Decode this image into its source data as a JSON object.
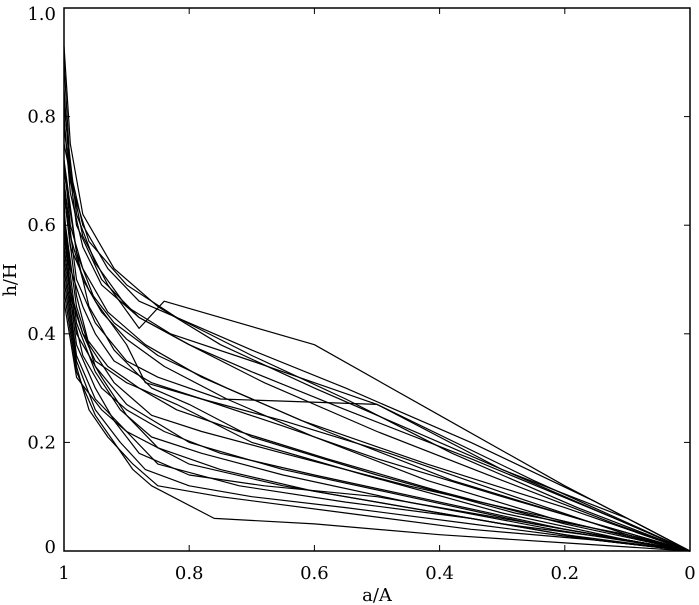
{
  "chart_data": {
    "type": "line",
    "title": "",
    "xlabel": "a/A",
    "ylabel": "h/H",
    "xlim": [
      1.0,
      0.0
    ],
    "ylim": [
      0.0,
      1.0
    ],
    "x_inverted": true,
    "grid": false,
    "legend": "none",
    "line_color": "#000000",
    "x_ticks": [
      {
        "value": 1.0,
        "label": "1"
      },
      {
        "value": 0.8,
        "label": "0.8"
      },
      {
        "value": 0.6,
        "label": "0.6"
      },
      {
        "value": 0.4,
        "label": "0.4"
      },
      {
        "value": 0.2,
        "label": "0.2"
      },
      {
        "value": 0.0,
        "label": "0"
      }
    ],
    "y_ticks": [
      {
        "value": 0.0,
        "label": "0"
      },
      {
        "value": 0.2,
        "label": "0.2"
      },
      {
        "value": 0.4,
        "label": "0.4"
      },
      {
        "value": 0.6,
        "label": "0.6"
      },
      {
        "value": 0.8,
        "label": "0.8"
      },
      {
        "value": 1.0,
        "label": "1.0"
      }
    ],
    "series": [
      {
        "x": [
          1.0,
          0.99,
          0.97,
          0.92,
          0.85,
          0.75,
          0.6,
          0.4,
          0.2,
          0.0
        ],
        "y": [
          0.93,
          0.75,
          0.62,
          0.52,
          0.45,
          0.38,
          0.3,
          0.2,
          0.1,
          0.0
        ]
      },
      {
        "x": [
          1.0,
          0.99,
          0.97,
          0.93,
          0.88,
          0.8,
          0.7,
          0.55,
          0.35,
          0.15,
          0.0
        ],
        "y": [
          0.9,
          0.7,
          0.6,
          0.52,
          0.46,
          0.42,
          0.37,
          0.3,
          0.2,
          0.09,
          0.0
        ]
      },
      {
        "x": [
          1.0,
          0.99,
          0.96,
          0.9,
          0.82,
          0.7,
          0.55,
          0.38,
          0.18,
          0.0
        ],
        "y": [
          0.85,
          0.68,
          0.57,
          0.49,
          0.43,
          0.36,
          0.28,
          0.18,
          0.08,
          0.0
        ]
      },
      {
        "x": [
          1.0,
          0.98,
          0.95,
          0.9,
          0.83,
          0.7,
          0.5,
          0.3,
          0.1,
          0.0
        ],
        "y": [
          0.82,
          0.62,
          0.53,
          0.45,
          0.4,
          0.35,
          0.27,
          0.15,
          0.06,
          0.0
        ]
      },
      {
        "x": [
          1.0,
          0.98,
          0.94,
          0.88,
          0.8,
          0.68,
          0.5,
          0.3,
          0.12,
          0.0
        ],
        "y": [
          0.78,
          0.6,
          0.5,
          0.43,
          0.38,
          0.31,
          0.22,
          0.13,
          0.05,
          0.0
        ]
      },
      {
        "x": [
          1.0,
          0.97,
          0.93,
          0.88,
          0.84,
          0.6,
          0.4,
          0.2,
          0.0
        ],
        "y": [
          0.75,
          0.58,
          0.49,
          0.41,
          0.46,
          0.38,
          0.25,
          0.12,
          0.0
        ]
      },
      {
        "x": [
          1.0,
          0.98,
          0.95,
          0.9,
          0.87,
          0.78,
          0.65,
          0.5,
          0.3,
          0.12,
          0.0
        ],
        "y": [
          0.72,
          0.55,
          0.46,
          0.38,
          0.31,
          0.28,
          0.23,
          0.17,
          0.1,
          0.04,
          0.0
        ]
      },
      {
        "x": [
          1.0,
          0.98,
          0.96,
          0.92,
          0.86,
          0.8,
          0.7,
          0.5,
          0.28,
          0.1,
          0.0
        ],
        "y": [
          0.7,
          0.55,
          0.45,
          0.37,
          0.3,
          0.27,
          0.21,
          0.14,
          0.07,
          0.03,
          0.0
        ]
      },
      {
        "x": [
          1.0,
          0.98,
          0.95,
          0.9,
          0.85,
          0.75,
          0.5,
          0.25,
          0.0
        ],
        "y": [
          0.68,
          0.5,
          0.42,
          0.35,
          0.32,
          0.28,
          0.27,
          0.13,
          0.0
        ]
      },
      {
        "x": [
          1.0,
          0.98,
          0.96,
          0.92,
          0.86,
          0.78,
          0.65,
          0.45,
          0.22,
          0.0
        ],
        "y": [
          0.66,
          0.47,
          0.38,
          0.31,
          0.25,
          0.22,
          0.18,
          0.12,
          0.06,
          0.0
        ]
      },
      {
        "x": [
          1.0,
          0.99,
          0.97,
          0.94,
          0.9,
          0.84,
          0.75,
          0.6,
          0.4,
          0.2,
          0.0
        ],
        "y": [
          0.64,
          0.46,
          0.36,
          0.3,
          0.26,
          0.22,
          0.18,
          0.14,
          0.09,
          0.04,
          0.0
        ]
      },
      {
        "x": [
          1.0,
          0.98,
          0.95,
          0.9,
          0.8,
          0.65,
          0.45,
          0.25,
          0.0
        ],
        "y": [
          0.62,
          0.45,
          0.34,
          0.27,
          0.2,
          0.15,
          0.1,
          0.05,
          0.0
        ]
      },
      {
        "x": [
          1.0,
          0.98,
          0.95,
          0.91,
          0.86,
          0.78,
          0.65,
          0.45,
          0.22,
          0.0
        ],
        "y": [
          0.6,
          0.42,
          0.33,
          0.26,
          0.21,
          0.18,
          0.14,
          0.09,
          0.04,
          0.0
        ]
      },
      {
        "x": [
          1.0,
          0.98,
          0.94,
          0.9,
          0.85,
          0.75,
          0.6,
          0.4,
          0.2,
          0.0
        ],
        "y": [
          0.58,
          0.4,
          0.32,
          0.25,
          0.19,
          0.15,
          0.11,
          0.07,
          0.03,
          0.0
        ]
      },
      {
        "x": [
          1.0,
          0.98,
          0.95,
          0.92,
          0.88,
          0.8,
          0.68,
          0.5,
          0.3,
          0.0
        ],
        "y": [
          0.56,
          0.38,
          0.3,
          0.24,
          0.18,
          0.14,
          0.12,
          0.1,
          0.06,
          0.0
        ]
      },
      {
        "x": [
          1.0,
          0.98,
          0.95,
          0.9,
          0.85,
          0.72,
          0.55,
          0.35,
          0.15,
          0.0
        ],
        "y": [
          0.54,
          0.36,
          0.28,
          0.22,
          0.16,
          0.12,
          0.09,
          0.06,
          0.02,
          0.0
        ]
      },
      {
        "x": [
          1.0,
          0.98,
          0.95,
          0.91,
          0.87,
          0.8,
          0.7,
          0.55,
          0.35,
          0.15,
          0.0
        ],
        "y": [
          0.52,
          0.35,
          0.26,
          0.2,
          0.15,
          0.12,
          0.1,
          0.08,
          0.05,
          0.02,
          0.0
        ]
      },
      {
        "x": [
          1.0,
          0.98,
          0.96,
          0.93,
          0.89,
          0.85,
          0.75,
          0.55,
          0.35,
          0.15,
          0.0
        ],
        "y": [
          0.5,
          0.34,
          0.26,
          0.21,
          0.16,
          0.12,
          0.1,
          0.07,
          0.04,
          0.02,
          0.0
        ]
      },
      {
        "x": [
          1.0,
          0.98,
          0.95,
          0.92,
          0.89,
          0.86,
          0.76,
          0.6,
          0.4,
          0.2,
          0.0
        ],
        "y": [
          0.48,
          0.33,
          0.25,
          0.2,
          0.15,
          0.12,
          0.06,
          0.05,
          0.03,
          0.015,
          0.0
        ]
      },
      {
        "x": [
          1.0,
          0.98,
          0.94,
          0.9,
          0.8,
          0.65,
          0.5,
          0.3,
          0.1,
          0.0
        ],
        "y": [
          0.46,
          0.32,
          0.26,
          0.22,
          0.16,
          0.12,
          0.09,
          0.05,
          0.02,
          0.0
        ]
      },
      {
        "x": [
          1.0,
          0.99,
          0.97,
          0.95,
          0.9,
          0.82,
          0.7,
          0.52,
          0.3,
          0.1,
          0.0
        ],
        "y": [
          0.6,
          0.48,
          0.4,
          0.35,
          0.31,
          0.27,
          0.2,
          0.14,
          0.07,
          0.02,
          0.0
        ]
      },
      {
        "x": [
          1.0,
          0.99,
          0.97,
          0.93,
          0.87,
          0.78,
          0.62,
          0.42,
          0.2,
          0.0
        ],
        "y": [
          0.72,
          0.6,
          0.52,
          0.44,
          0.38,
          0.32,
          0.24,
          0.16,
          0.08,
          0.0
        ]
      },
      {
        "x": [
          1.0,
          0.99,
          0.97,
          0.94,
          0.88,
          0.8,
          0.7,
          0.55,
          0.35,
          0.12,
          0.0
        ],
        "y": [
          0.8,
          0.66,
          0.56,
          0.49,
          0.43,
          0.38,
          0.33,
          0.26,
          0.17,
          0.06,
          0.0
        ]
      },
      {
        "x": [
          1.0,
          0.99,
          0.96,
          0.92,
          0.85,
          0.74,
          0.58,
          0.38,
          0.18,
          0.0
        ],
        "y": [
          0.66,
          0.56,
          0.48,
          0.42,
          0.36,
          0.3,
          0.22,
          0.13,
          0.06,
          0.0
        ]
      },
      {
        "x": [
          1.0,
          0.99,
          0.97,
          0.95,
          0.92,
          0.86,
          0.78,
          0.65,
          0.48,
          0.28,
          0.1,
          0.0
        ],
        "y": [
          0.62,
          0.52,
          0.45,
          0.4,
          0.35,
          0.31,
          0.28,
          0.24,
          0.18,
          0.1,
          0.03,
          0.0
        ]
      },
      {
        "x": [
          1.0,
          0.99,
          0.97,
          0.93,
          0.88,
          0.82,
          0.72,
          0.58,
          0.4,
          0.2,
          0.0
        ],
        "y": [
          0.56,
          0.47,
          0.4,
          0.34,
          0.3,
          0.26,
          0.22,
          0.17,
          0.11,
          0.05,
          0.0
        ]
      },
      {
        "x": [
          1.0,
          0.99,
          0.97,
          0.94,
          0.9,
          0.84,
          0.74,
          0.6,
          0.42,
          0.22,
          0.0
        ],
        "y": [
          0.68,
          0.58,
          0.5,
          0.44,
          0.39,
          0.34,
          0.28,
          0.21,
          0.13,
          0.06,
          0.0
        ]
      }
    ]
  }
}
